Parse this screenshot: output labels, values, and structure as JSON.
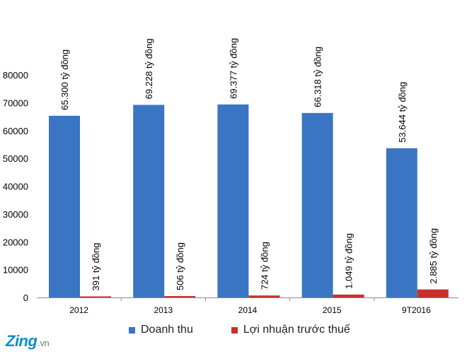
{
  "chart_data": {
    "type": "bar",
    "categories": [
      "2012",
      "2013",
      "2014",
      "2015",
      "9T2016"
    ],
    "series": [
      {
        "name": "Doanh thu",
        "color": "#3a75c4",
        "values": [
          65300,
          69228,
          69377,
          66318,
          53644
        ],
        "labels": [
          "65.300 tỷ đồng",
          "69.228 tỷ đồng",
          "69.377 tỷ đồng",
          "66.318 tỷ đồng",
          "53.644 tỷ đồng"
        ]
      },
      {
        "name": "Lợi nhuận trước thuế",
        "color": "#c8302c",
        "values": [
          391,
          506,
          724,
          1049,
          2885
        ],
        "labels": [
          "391 tỷ đồng",
          "506 tỷ đồng",
          "724 tỷ đồng",
          "1.049 tỷ đồng",
          "2.885 tỷ đồng"
        ]
      }
    ],
    "yticks": [
      0,
      10000,
      20000,
      30000,
      40000,
      50000,
      60000,
      70000,
      80000
    ],
    "ylim": [
      0,
      80000
    ],
    "grid": false,
    "legend": "bottom"
  },
  "watermark": {
    "brand": "Zing",
    "suffix": ".vn"
  }
}
